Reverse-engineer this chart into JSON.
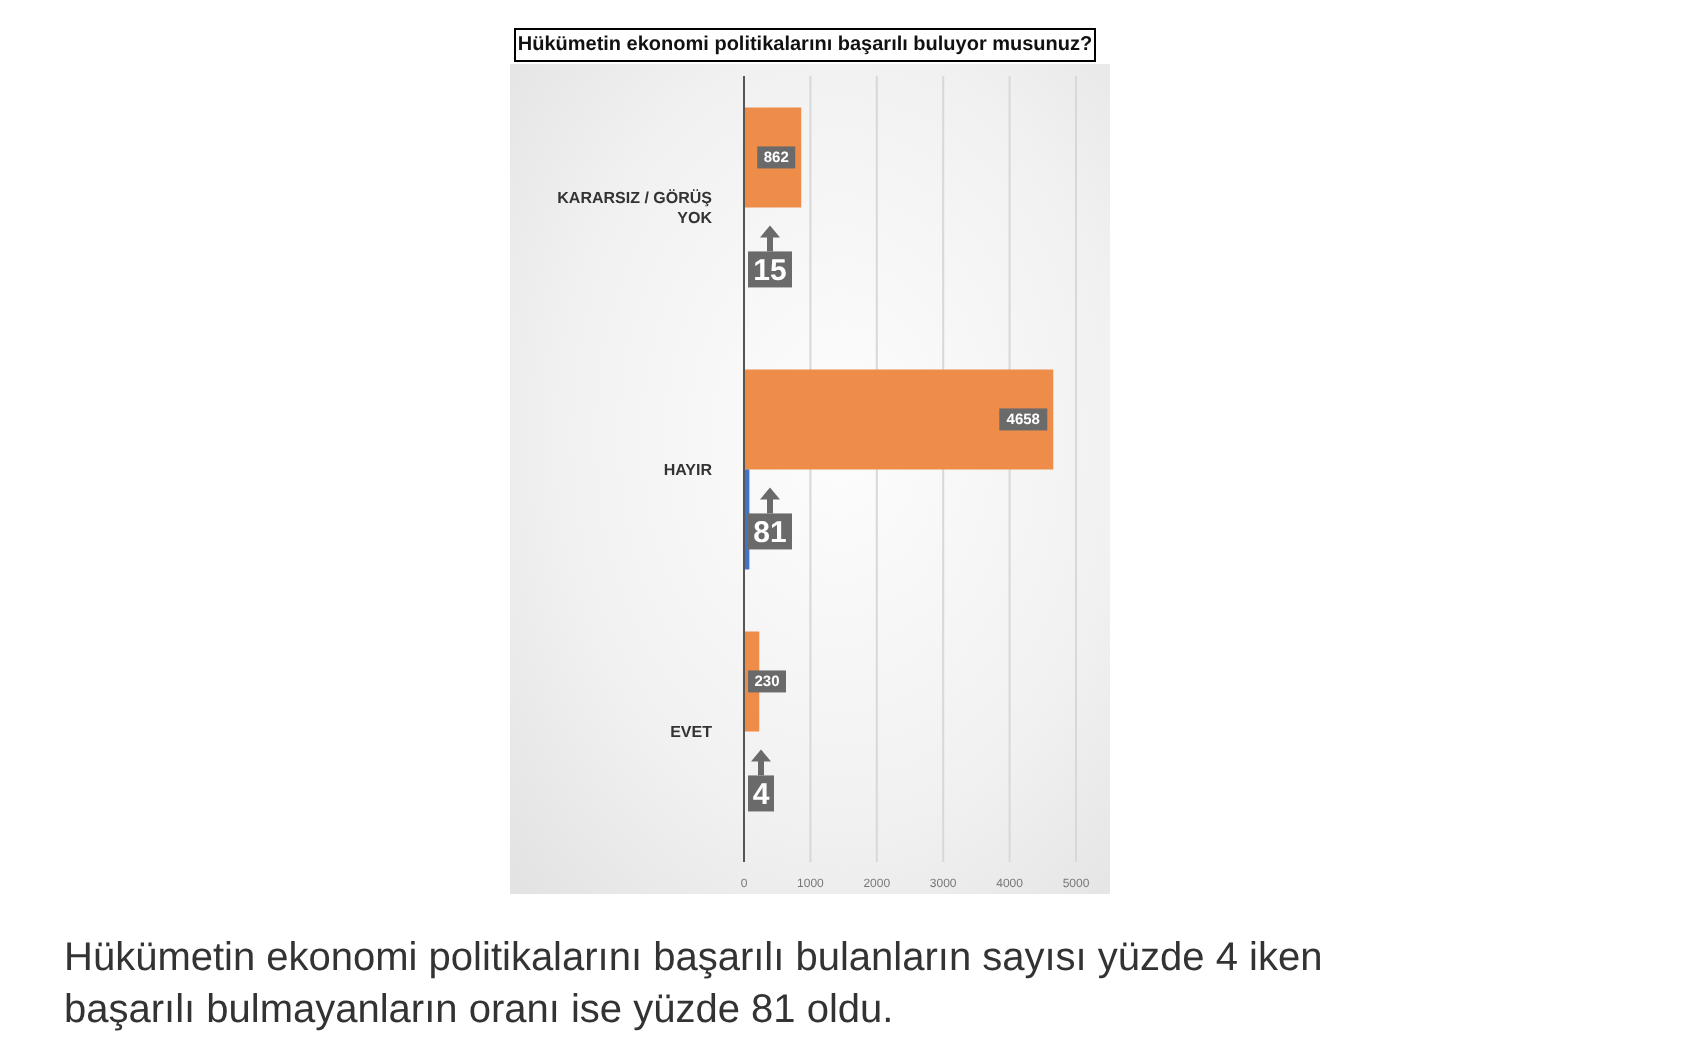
{
  "chart_data": {
    "type": "bar",
    "orientation": "horizontal",
    "title": "Hükümetin ekonomi politikalarını başarılı buluyor musunuz?",
    "annotations": [
      "Hükümetin ekonomi politikalarını başarılı bulanların sayısı yüzde 4 iken başarılı bulmayanların oranı ise yüzde 81 oldu."
    ],
    "categories": [
      "KARARSIZ / GÖRÜŞ YOK",
      "HAYIR",
      "EVET"
    ],
    "series": [
      {
        "color": "#ee8c4a",
        "values": [
          862,
          4658,
          230
        ]
      },
      {
        "color": "#4472c4",
        "values": [
          15,
          81,
          4
        ]
      }
    ],
    "xlim": [
      0,
      5000
    ],
    "xticks": [
      0,
      1000,
      2000,
      3000,
      4000,
      5000
    ],
    "grid": "x",
    "data_labels": true
  }
}
